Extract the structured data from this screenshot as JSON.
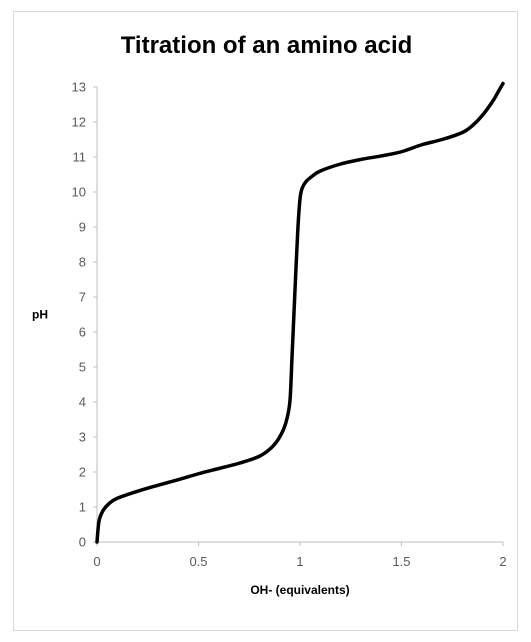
{
  "chart_data": {
    "type": "line",
    "title": "Titration of an amino acid",
    "xlabel": "OH- (equivalents)",
    "ylabel": "pH",
    "xlim": [
      0,
      2
    ],
    "ylim": [
      0,
      13
    ],
    "x_ticks": [
      "0",
      "0.5",
      "1",
      "1.5",
      "2"
    ],
    "y_ticks": [
      "0",
      "1",
      "2",
      "3",
      "4",
      "5",
      "6",
      "7",
      "8",
      "9",
      "10",
      "11",
      "12",
      "13"
    ],
    "grid": false,
    "legend": "none",
    "series": [
      {
        "color": "#000000",
        "x": [
          0.0,
          0.01,
          0.03,
          0.06,
          0.1,
          0.2,
          0.3,
          0.4,
          0.5,
          0.6,
          0.7,
          0.8,
          0.86,
          0.9,
          0.93,
          0.95,
          0.96,
          0.97,
          0.98,
          0.99,
          1.0,
          1.01,
          1.03,
          1.06,
          1.1,
          1.2,
          1.3,
          1.4,
          1.5,
          1.6,
          1.7,
          1.8,
          1.85,
          1.9,
          1.95,
          1.98,
          2.0
        ],
        "y": [
          0.0,
          0.6,
          0.9,
          1.1,
          1.25,
          1.45,
          1.62,
          1.78,
          1.95,
          2.1,
          2.25,
          2.45,
          2.7,
          3.0,
          3.4,
          4.0,
          5.2,
          6.5,
          7.8,
          9.0,
          9.8,
          10.1,
          10.3,
          10.45,
          10.6,
          10.8,
          10.93,
          11.03,
          11.15,
          11.35,
          11.5,
          11.7,
          11.9,
          12.2,
          12.6,
          12.9,
          13.1
        ]
      }
    ]
  }
}
